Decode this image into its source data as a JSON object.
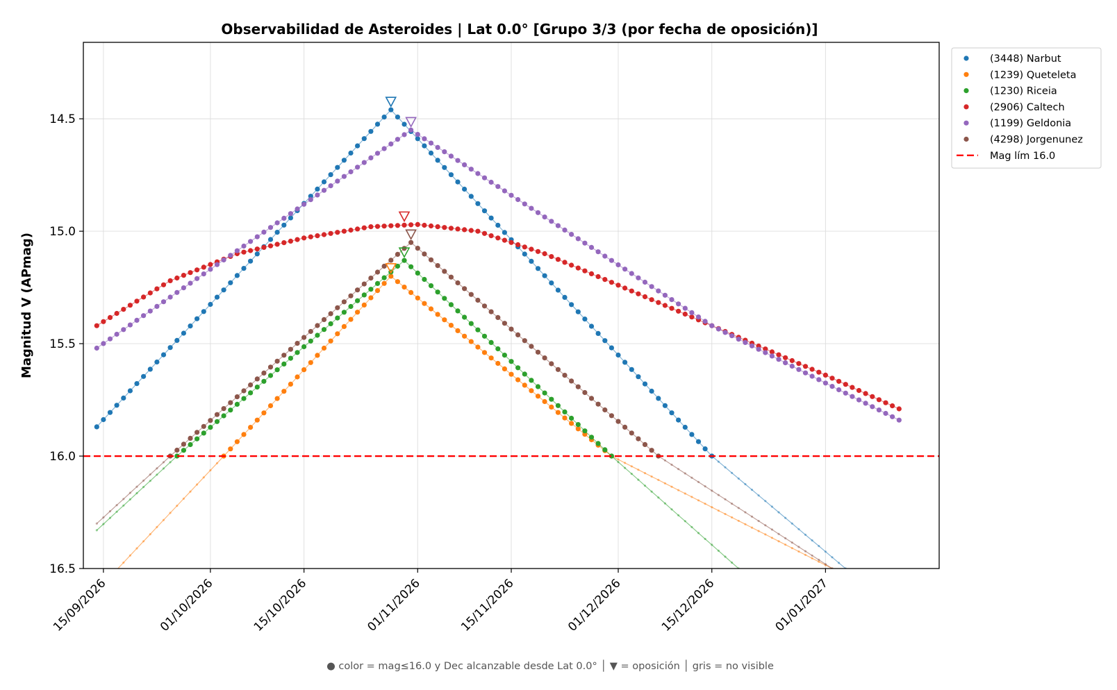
{
  "chart_data": {
    "type": "line",
    "title": "Observabilidad de Asteroides  |  Lat 0.0°  [Grupo 3/3 (por fecha de oposición)]",
    "xlabel": "",
    "ylabel": "Magnitud V (APmag)",
    "x_type": "date",
    "xlim": [
      "2026-09-12",
      "2027-01-18"
    ],
    "ylim": [
      16.5,
      14.16
    ],
    "y_inverted": true,
    "x_ticks": [
      {
        "date": "2026-09-15",
        "label": "15/09/2026"
      },
      {
        "date": "2026-10-01",
        "label": "01/10/2026"
      },
      {
        "date": "2026-10-15",
        "label": "15/10/2026"
      },
      {
        "date": "2026-11-01",
        "label": "01/11/2026"
      },
      {
        "date": "2026-11-15",
        "label": "15/11/2026"
      },
      {
        "date": "2026-12-01",
        "label": "01/12/2026"
      },
      {
        "date": "2026-12-15",
        "label": "15/12/2026"
      },
      {
        "date": "2027-01-01",
        "label": "01/01/2027"
      }
    ],
    "y_ticks": [
      {
        "value": 14.5,
        "label": "14.5"
      },
      {
        "value": 15.0,
        "label": "15.0"
      },
      {
        "value": 15.5,
        "label": "15.5"
      },
      {
        "value": 16.0,
        "label": "16.0"
      },
      {
        "value": 16.5,
        "label": "16.5"
      }
    ],
    "grid": true,
    "legend_position": "outside-top-right",
    "limiting_magnitude": {
      "value": 16.0,
      "label": "Mag lím 16.0",
      "color": "#ff0000"
    },
    "series": [
      {
        "name": "(3448) Narbut",
        "color": "#1f77b4",
        "points": [
          [
            "2026-09-14",
            15.87
          ],
          [
            "2026-10-28",
            14.46
          ],
          [
            "2026-12-15",
            16.0
          ],
          [
            "2027-01-04",
            16.5
          ]
        ],
        "visible_range": [
          "2026-09-14",
          "2026-12-15"
        ],
        "opposition": {
          "date": "2026-10-28",
          "mag": 14.46
        }
      },
      {
        "name": "(1239) Queteleta",
        "color": "#ff7f0e",
        "points": [
          [
            "2026-09-14",
            16.6
          ],
          [
            "2026-10-03",
            16.0
          ],
          [
            "2026-10-28",
            15.2
          ],
          [
            "2026-11-30",
            16.0
          ],
          [
            "2027-01-02",
            16.5
          ]
        ],
        "visible_range": [
          "2026-10-03",
          "2026-11-30"
        ],
        "opposition": {
          "date": "2026-10-28",
          "mag": 15.2
        }
      },
      {
        "name": "(1230) Riceia",
        "color": "#2ca02c",
        "points": [
          [
            "2026-09-14",
            16.33
          ],
          [
            "2026-09-26",
            16.0
          ],
          [
            "2026-10-30",
            15.13
          ],
          [
            "2026-11-30",
            16.0
          ],
          [
            "2026-12-19",
            16.5
          ]
        ],
        "visible_range": [
          "2026-09-26",
          "2026-11-30"
        ],
        "opposition": {
          "date": "2026-10-30",
          "mag": 15.13
        }
      },
      {
        "name": "(2906) Caltech",
        "color": "#d62728",
        "points": [
          [
            "2026-09-14",
            15.42
          ],
          [
            "2026-09-25",
            15.22
          ],
          [
            "2026-10-05",
            15.1
          ],
          [
            "2026-10-15",
            15.03
          ],
          [
            "2026-10-25",
            14.98
          ],
          [
            "2026-11-01",
            14.97
          ],
          [
            "2026-11-10",
            15.0
          ],
          [
            "2026-11-20",
            15.1
          ],
          [
            "2026-12-01",
            15.24
          ],
          [
            "2026-12-15",
            15.42
          ],
          [
            "2027-01-01",
            15.64
          ],
          [
            "2027-01-12",
            15.79
          ]
        ],
        "visible_range": [
          "2026-09-14",
          "2027-01-12"
        ],
        "opposition": {
          "date": "2026-10-30",
          "mag": 14.97
        }
      },
      {
        "name": "(1199) Geldonia",
        "color": "#9467bd",
        "points": [
          [
            "2026-09-14",
            15.52
          ],
          [
            "2026-10-31",
            14.55
          ],
          [
            "2026-12-15",
            15.42
          ],
          [
            "2027-01-12",
            15.84
          ]
        ],
        "visible_range": [
          "2026-09-14",
          "2027-01-12"
        ],
        "opposition": {
          "date": "2026-10-31",
          "mag": 14.55
        }
      },
      {
        "name": "(4298) Jorgenunez",
        "color": "#8c564b",
        "points": [
          [
            "2026-09-14",
            16.3
          ],
          [
            "2026-09-25",
            16.0
          ],
          [
            "2026-10-31",
            15.05
          ],
          [
            "2026-12-07",
            16.0
          ],
          [
            "2027-01-02",
            16.5
          ]
        ],
        "visible_range": [
          "2026-09-25",
          "2026-12-07"
        ],
        "opposition": {
          "date": "2026-10-31",
          "mag": 15.05
        }
      }
    ],
    "footnote": "● color = mag≤16.0 y Dec alcanzable desde Lat 0.0°  │  ▼ = oposición  │  gris = no visible"
  }
}
